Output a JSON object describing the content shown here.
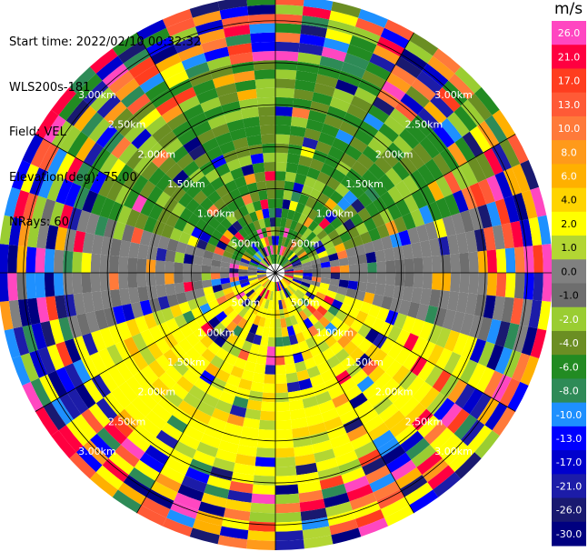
{
  "info": {
    "start_time": "Start time: 2022/02/10 00:32:32",
    "instrument": "WLS200s-181",
    "field": "Field: VEL",
    "elevation": "Elevation(deg): 75.00",
    "nrays": "NRays: 60"
  },
  "colorbar": {
    "unit": "m/s",
    "ticks": [
      "26.0",
      "21.0",
      "17.0",
      "13.0",
      "10.0",
      "8.0",
      "6.0",
      "4.0",
      "2.0",
      "1.0",
      "0.0",
      "-1.0",
      "-2.0",
      "-4.0",
      "-6.0",
      "-8.0",
      "-10.0",
      "-13.0",
      "-17.0",
      "-21.0",
      "-26.0",
      "-30.0"
    ],
    "colors": [
      "#ff47c1",
      "#ff0040",
      "#ff3d1f",
      "#ff5a36",
      "#ff7a3a",
      "#ff9a1a",
      "#ffb000",
      "#ffd400",
      "#ffff00",
      "#b3d633",
      "#808080",
      "#6e6e6e",
      "#9acd32",
      "#6b8e23",
      "#228b22",
      "#2e8b57",
      "#1e90ff",
      "#0000ff",
      "#0000cd",
      "#1c1ca8",
      "#191970",
      "#000080"
    ]
  },
  "chart_data": {
    "type": "heatmap",
    "projection": "polar (PPI)",
    "title": "",
    "range_labels": [
      "500m",
      "1.00km",
      "1.50km",
      "2.00km",
      "2.50km",
      "3.00km"
    ],
    "range_rings_km": [
      0.5,
      1.0,
      1.5,
      2.0,
      2.5,
      3.0
    ],
    "max_range_km": 3.3,
    "radial_lines_deg": [
      0,
      30,
      60,
      90,
      120,
      150,
      180,
      210,
      240,
      270,
      300,
      330
    ],
    "nrays": 60,
    "vmin": -30.0,
    "vmax": 26.0,
    "colormap_levels": [
      -30.0,
      -26.0,
      -21.0,
      -17.0,
      -13.0,
      -10.0,
      -8.0,
      -6.0,
      -4.0,
      -2.0,
      -1.0,
      0.0,
      1.0,
      2.0,
      4.0,
      6.0,
      8.0,
      10.0,
      13.0,
      17.0,
      21.0,
      26.0
    ],
    "dominant_pattern": {
      "north_inner": -6.0,
      "south_inner": 2.0,
      "east_west_inner": 0.0,
      "outer_ring": "mixed noise -30 to 26"
    }
  }
}
